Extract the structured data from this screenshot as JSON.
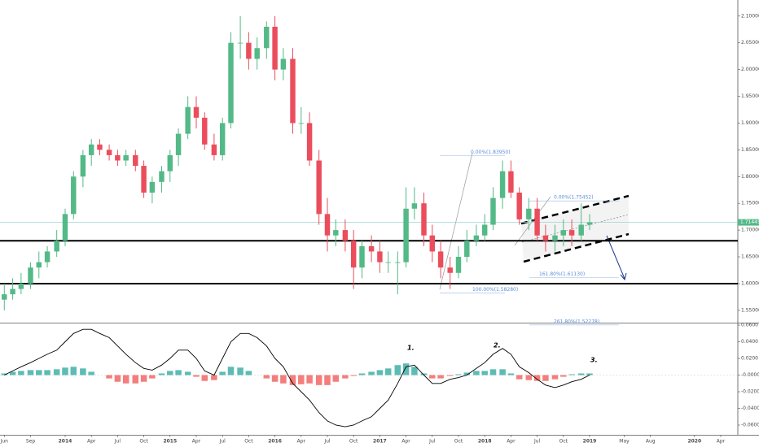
{
  "chart_data": [
    {
      "type": "candlestick",
      "up_color": "#53b987",
      "down_color": "#eb4d5c",
      "xlim": [
        2013.379,
        2020.413
      ],
      "ylim": [
        1.527,
        2.13
      ],
      "yticks": [
        {
          "value": 1.55,
          "label": "1.55000"
        },
        {
          "value": 1.6,
          "label": "1.60000"
        },
        {
          "value": 1.65,
          "label": "1.65000"
        },
        {
          "value": 1.7,
          "label": "1.70000"
        },
        {
          "value": 1.75,
          "label": "1.75000"
        },
        {
          "value": 1.8,
          "label": "1.80000"
        },
        {
          "value": 1.85,
          "label": "1.85000"
        },
        {
          "value": 1.9,
          "label": "1.90000"
        },
        {
          "value": 1.95,
          "label": "1.95000"
        },
        {
          "value": 2.0,
          "label": "2.00000"
        },
        {
          "value": 2.05,
          "label": "2.05000"
        },
        {
          "value": 2.1,
          "label": "2.10000"
        }
      ],
      "x": [
        2013.42,
        2013.5,
        2013.58,
        2013.67,
        2013.75,
        2013.83,
        2013.92,
        2014.0,
        2014.08,
        2014.17,
        2014.25,
        2014.33,
        2014.42,
        2014.5,
        2014.58,
        2014.67,
        2014.75,
        2014.83,
        2014.92,
        2015.0,
        2015.08,
        2015.17,
        2015.25,
        2015.33,
        2015.42,
        2015.5,
        2015.58,
        2015.67,
        2015.75,
        2015.83,
        2015.92,
        2016.0,
        2016.08,
        2016.17,
        2016.25,
        2016.33,
        2016.42,
        2016.5,
        2016.58,
        2016.67,
        2016.75,
        2016.83,
        2016.92,
        2017.0,
        2017.08,
        2017.17,
        2017.25,
        2017.33,
        2017.42,
        2017.5,
        2017.58,
        2017.67,
        2017.75,
        2017.83,
        2017.92,
        2018.0,
        2018.08,
        2018.17,
        2018.25,
        2018.33,
        2018.42,
        2018.5,
        2018.58,
        2018.67,
        2018.75,
        2018.83,
        2018.92,
        2019.0
      ],
      "open": [
        1.57,
        1.58,
        1.59,
        1.6,
        1.63,
        1.64,
        1.66,
        1.68,
        1.73,
        1.8,
        1.84,
        1.86,
        1.85,
        1.84,
        1.83,
        1.84,
        1.82,
        1.77,
        1.79,
        1.81,
        1.84,
        1.88,
        1.93,
        1.91,
        1.86,
        1.84,
        1.9,
        2.05,
        2.05,
        2.02,
        2.04,
        2.08,
        2.0,
        2.02,
        1.9,
        1.9,
        1.83,
        1.73,
        1.69,
        1.7,
        1.68,
        1.63,
        1.67,
        1.66,
        1.64,
        1.64,
        1.64,
        1.74,
        1.75,
        1.69,
        1.66,
        1.63,
        1.62,
        1.65,
        1.68,
        1.69,
        1.71,
        1.76,
        1.81,
        1.77,
        1.72,
        1.74,
        1.69,
        1.68,
        1.69,
        1.7,
        1.69,
        1.71
      ],
      "high": [
        1.6,
        1.61,
        1.62,
        1.64,
        1.66,
        1.67,
        1.7,
        1.74,
        1.81,
        1.85,
        1.87,
        1.87,
        1.86,
        1.85,
        1.85,
        1.85,
        1.83,
        1.8,
        1.82,
        1.85,
        1.89,
        1.95,
        1.95,
        1.92,
        1.88,
        1.91,
        2.07,
        2.1,
        2.07,
        2.06,
        2.09,
        2.1,
        2.04,
        2.04,
        1.93,
        1.92,
        1.85,
        1.76,
        1.72,
        1.72,
        1.7,
        1.68,
        1.69,
        1.68,
        1.66,
        1.66,
        1.78,
        1.78,
        1.77,
        1.71,
        1.68,
        1.65,
        1.67,
        1.7,
        1.71,
        1.73,
        1.78,
        1.83,
        1.83,
        1.78,
        1.76,
        1.76,
        1.71,
        1.71,
        1.72,
        1.72,
        1.75,
        1.73
      ],
      "low": [
        1.55,
        1.57,
        1.58,
        1.59,
        1.61,
        1.63,
        1.65,
        1.67,
        1.72,
        1.78,
        1.82,
        1.84,
        1.83,
        1.82,
        1.82,
        1.81,
        1.76,
        1.75,
        1.77,
        1.79,
        1.82,
        1.87,
        1.89,
        1.85,
        1.83,
        1.83,
        1.89,
        2.02,
        2.0,
        2.0,
        2.02,
        1.98,
        1.98,
        1.88,
        1.88,
        1.82,
        1.71,
        1.66,
        1.67,
        1.66,
        1.59,
        1.61,
        1.64,
        1.62,
        1.62,
        1.58,
        1.63,
        1.72,
        1.67,
        1.64,
        1.61,
        1.59,
        1.61,
        1.64,
        1.67,
        1.68,
        1.7,
        1.74,
        1.76,
        1.71,
        1.7,
        1.68,
        1.66,
        1.66,
        1.67,
        1.67,
        1.68,
        1.7
      ],
      "close": [
        1.58,
        1.59,
        1.6,
        1.63,
        1.64,
        1.66,
        1.68,
        1.73,
        1.8,
        1.84,
        1.86,
        1.85,
        1.84,
        1.83,
        1.84,
        1.82,
        1.77,
        1.79,
        1.81,
        1.84,
        1.88,
        1.93,
        1.91,
        1.86,
        1.84,
        1.9,
        2.05,
        2.05,
        2.02,
        2.04,
        2.08,
        2.0,
        2.02,
        1.9,
        1.9,
        1.83,
        1.73,
        1.69,
        1.7,
        1.68,
        1.63,
        1.67,
        1.66,
        1.64,
        1.64,
        1.64,
        1.74,
        1.75,
        1.69,
        1.66,
        1.63,
        1.62,
        1.65,
        1.68,
        1.69,
        1.71,
        1.76,
        1.81,
        1.77,
        1.72,
        1.74,
        1.69,
        1.68,
        1.69,
        1.7,
        1.69,
        1.71,
        1.7145
      ],
      "hlines": [
        1.68,
        1.6
      ],
      "last_price": 1.71445,
      "fib_levels": [
        {
          "value": 1.8395,
          "label": "0.00%(1.83950)"
        },
        {
          "value": 1.5828,
          "label": "100.00%(1.58280)"
        },
        {
          "value": 1.75452,
          "label": "0.00%(1.75452)"
        },
        {
          "value": 1.6113,
          "label": "161.80%(1.61130)"
        },
        {
          "value": 1.52278,
          "label": "261.80%(1.52278)"
        }
      ]
    },
    {
      "type": "macd",
      "line_color": "#000000",
      "pos_color": "#26a69a",
      "neg_color": "#ef5350",
      "xlim": [
        2013.379,
        2020.413
      ],
      "ylim": [
        -0.0717,
        0.062
      ],
      "yticks": [
        {
          "value": 0.06,
          "label": "0.0600"
        },
        {
          "value": 0.04,
          "label": "0.0400"
        },
        {
          "value": 0.02,
          "label": "0.0200"
        },
        {
          "value": 0,
          "label": "-0.0000"
        },
        {
          "value": -0.02,
          "label": "-0.0200"
        },
        {
          "value": -0.04,
          "label": "-0.0400"
        },
        {
          "value": -0.06,
          "label": "-0.0600"
        }
      ],
      "xticks": [
        {
          "value": 2013.42,
          "label": "Jun"
        },
        {
          "value": 2013.67,
          "label": "Sep"
        },
        2014,
        {
          "value": 2014.25,
          "label": "Apr"
        },
        {
          "value": 2014.5,
          "label": "Jul"
        },
        {
          "value": 2014.75,
          "label": "Oct"
        },
        2015,
        {
          "value": 2015.25,
          "label": "Apr"
        },
        {
          "value": 2015.5,
          "label": "Jul"
        },
        {
          "value": 2015.75,
          "label": "Oct"
        },
        2016,
        {
          "value": 2016.25,
          "label": "Apr"
        },
        {
          "value": 2016.5,
          "label": "Jul"
        },
        {
          "value": 2016.75,
          "label": "Oct"
        },
        2017,
        {
          "value": 2017.25,
          "label": "Apr"
        },
        {
          "value": 2017.5,
          "label": "Jul"
        },
        {
          "value": 2017.75,
          "label": "Oct"
        },
        2018,
        {
          "value": 2018.25,
          "label": "Apr"
        },
        {
          "value": 2018.5,
          "label": "Jul"
        },
        {
          "value": 2018.75,
          "label": "Oct"
        },
        2019,
        {
          "value": 2019.33,
          "label": "May"
        },
        {
          "value": 2019.58,
          "label": "Aug"
        },
        2020,
        {
          "value": 2020.25,
          "label": "Apr"
        }
      ],
      "x": [
        2013.42,
        2013.5,
        2013.58,
        2013.67,
        2013.75,
        2013.83,
        2013.92,
        2014.0,
        2014.08,
        2014.17,
        2014.25,
        2014.33,
        2014.42,
        2014.5,
        2014.58,
        2014.67,
        2014.75,
        2014.83,
        2014.92,
        2015.0,
        2015.08,
        2015.17,
        2015.25,
        2015.33,
        2015.42,
        2015.5,
        2015.58,
        2015.67,
        2015.75,
        2015.83,
        2015.92,
        2016.0,
        2016.08,
        2016.17,
        2016.25,
        2016.33,
        2016.42,
        2016.5,
        2016.58,
        2016.67,
        2016.75,
        2016.83,
        2016.92,
        2017.0,
        2017.08,
        2017.17,
        2017.25,
        2017.33,
        2017.42,
        2017.5,
        2017.58,
        2017.67,
        2017.75,
        2017.83,
        2017.92,
        2018.0,
        2018.08,
        2018.17,
        2018.25,
        2018.33,
        2018.42,
        2018.5,
        2018.58,
        2018.67,
        2018.75,
        2018.83,
        2018.92,
        2019.0
      ],
      "macd": [
        0.0,
        0.005,
        0.01,
        0.015,
        0.02,
        0.025,
        0.03,
        0.04,
        0.05,
        0.055,
        0.055,
        0.05,
        0.045,
        0.035,
        0.025,
        0.015,
        0.008,
        0.006,
        0.012,
        0.02,
        0.03,
        0.03,
        0.02,
        0.005,
        0.0,
        0.02,
        0.04,
        0.05,
        0.05,
        0.045,
        0.035,
        0.02,
        0.01,
        -0.01,
        -0.02,
        -0.03,
        -0.045,
        -0.055,
        -0.06,
        -0.062,
        -0.06,
        -0.055,
        -0.05,
        -0.04,
        -0.03,
        -0.01,
        0.01,
        0.012,
        0.0,
        -0.01,
        -0.01,
        -0.005,
        -0.003,
        0.0,
        0.008,
        0.015,
        0.025,
        0.032,
        0.025,
        0.01,
        0.003,
        -0.005,
        -0.012,
        -0.015,
        -0.012,
        -0.008,
        -0.005,
        0.0
      ],
      "histogram": [
        0.002,
        0.004,
        0.005,
        0.006,
        0.006,
        0.006,
        0.007,
        0.009,
        0.01,
        0.008,
        0.004,
        0.0,
        -0.004,
        -0.008,
        -0.01,
        -0.01,
        -0.008,
        -0.004,
        0.002,
        0.005,
        0.006,
        0.004,
        -0.002,
        -0.007,
        -0.006,
        0.004,
        0.01,
        0.009,
        0.005,
        0.0,
        -0.004,
        -0.008,
        -0.01,
        -0.012,
        -0.011,
        -0.01,
        -0.012,
        -0.012,
        -0.008,
        -0.004,
        -0.001,
        0.002,
        0.004,
        0.006,
        0.008,
        0.012,
        0.014,
        0.01,
        0.002,
        -0.004,
        -0.004,
        -0.001,
        0.001,
        0.003,
        0.005,
        0.005,
        0.007,
        0.007,
        0.002,
        -0.005,
        -0.006,
        -0.007,
        -0.007,
        -0.005,
        -0.002,
        0.001,
        0.002,
        0.002
      ],
      "annotations": [
        "1.",
        "2.",
        "3."
      ]
    }
  ]
}
